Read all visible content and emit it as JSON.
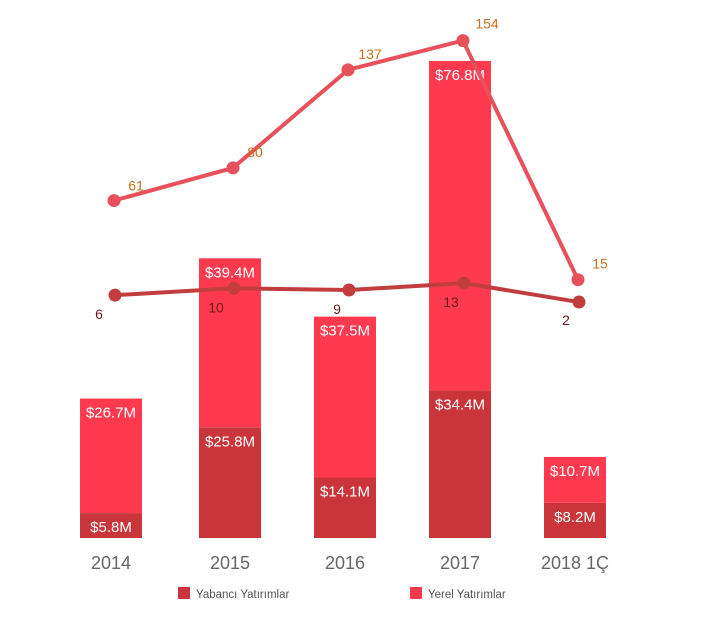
{
  "chart_data": {
    "type": "bar",
    "stacked": true,
    "categories": [
      "2014",
      "2015",
      "2016",
      "2017",
      "2018 1Ç"
    ],
    "series": [
      {
        "name": "Yabancı Yatırımlar",
        "kind": "bar",
        "values": [
          5.8,
          25.8,
          14.1,
          34.4,
          8.2
        ],
        "labels": [
          "$5.8M",
          "$25.8M",
          "$14.1M",
          "$34.4M",
          "$8.2M"
        ],
        "color": "#c9353a"
      },
      {
        "name": "Yerel Yatırımlar",
        "kind": "bar",
        "values": [
          26.7,
          39.4,
          37.5,
          76.8,
          10.7
        ],
        "labels": [
          "$26.7M",
          "$39.4M",
          "$37.5M",
          "$76.8M",
          "$10.7M"
        ],
        "color": "#ff3a4f"
      }
    ],
    "lines": [
      {
        "values": [
          61,
          80,
          137,
          154,
          15
        ],
        "labels": [
          "61",
          "80",
          "137",
          "154",
          "15"
        ],
        "color": "#e8505b",
        "label_color": "#c86f1e"
      },
      {
        "values": [
          6,
          10,
          9,
          13,
          2
        ],
        "labels": [
          "6",
          "10",
          "9",
          "13",
          "2"
        ],
        "color": "#c23e3e",
        "label_color": "#6a1a1a"
      }
    ],
    "legend": {
      "position": "bottom",
      "items": [
        {
          "label": "Yabancı Yatırımlar",
          "color": "#c9353a"
        },
        {
          "label": "Yerel Yatırımlar",
          "color": "#ff3a4f"
        }
      ]
    },
    "grid": false
  }
}
